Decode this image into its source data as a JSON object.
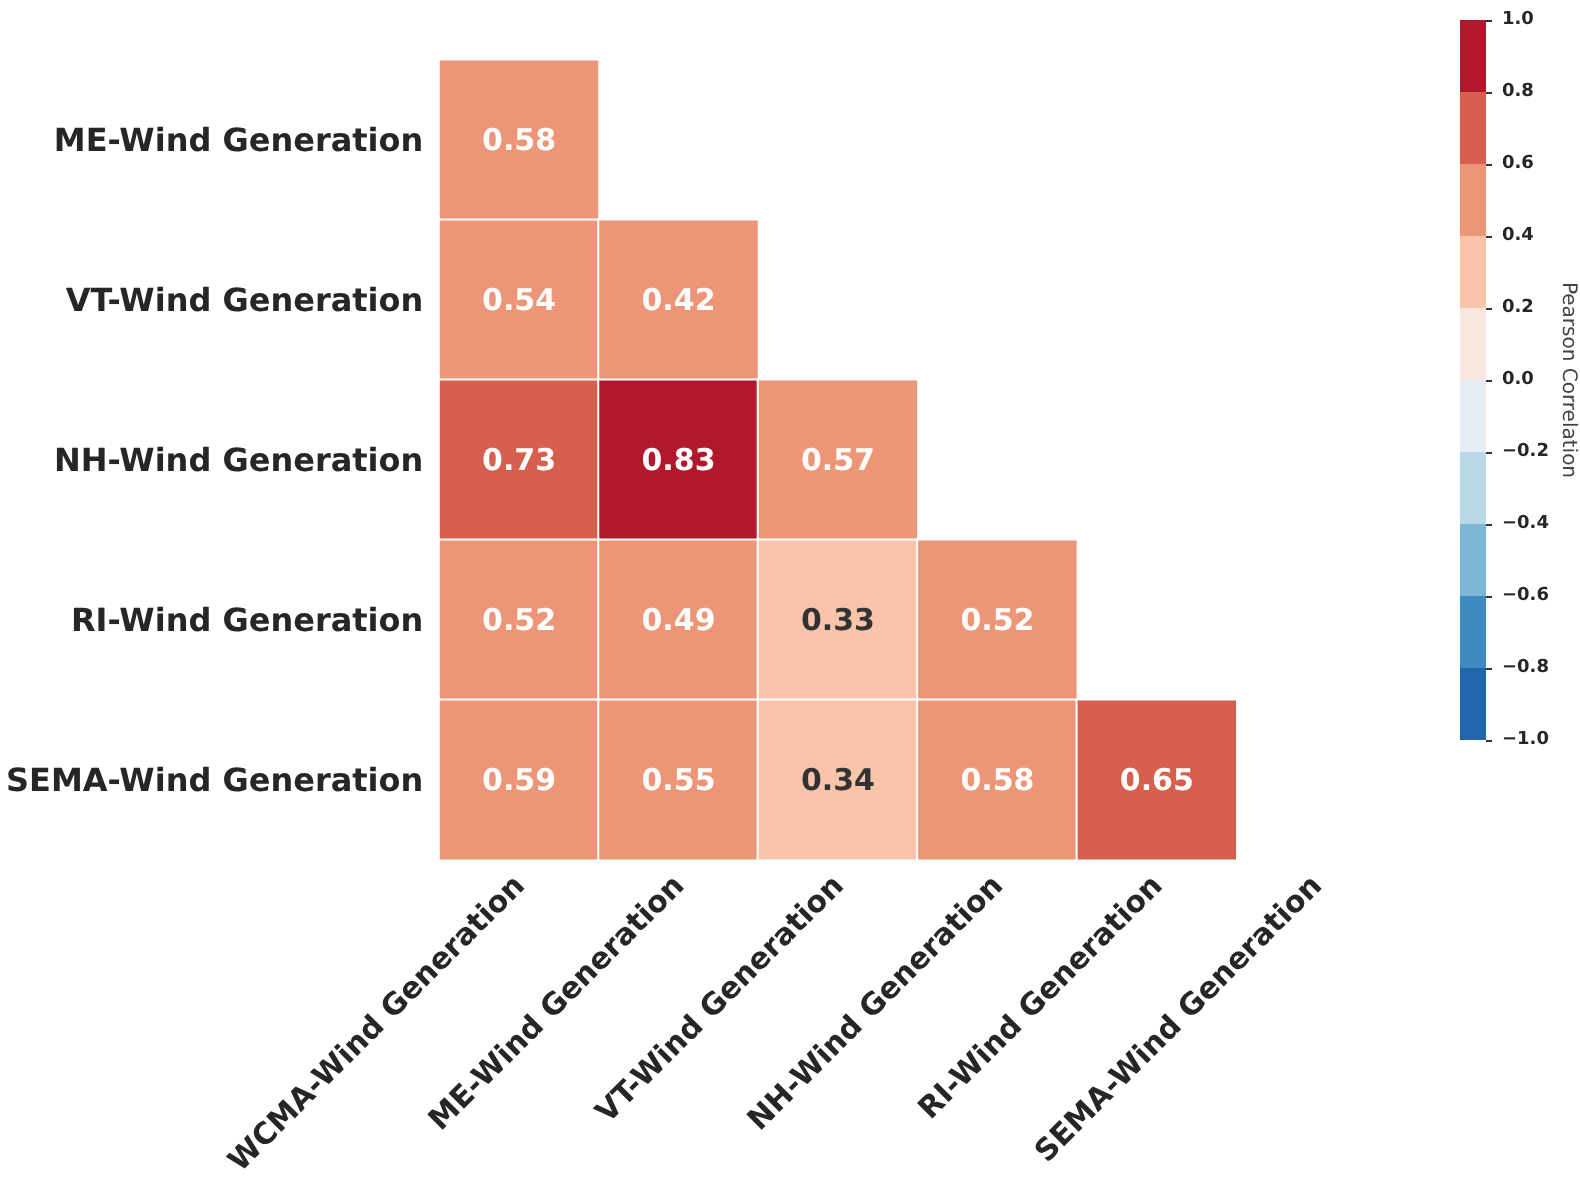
{
  "chart_data": {
    "type": "heatmap",
    "clabel": "Pearson Correlation",
    "data_labels": true,
    "categories": [
      "WCMA-Wind Generation",
      "ME-Wind Generation",
      "VT-Wind Generation",
      "NH-Wind Generation",
      "RI-Wind Generation",
      "SEMA-Wind Generation"
    ],
    "y_categories": [
      "ME-Wind Generation",
      "VT-Wind Generation",
      "NH-Wind Generation",
      "RI-Wind Generation",
      "SEMA-Wind Generation"
    ],
    "cells": [
      [
        0.58,
        null,
        null,
        null,
        null,
        null
      ],
      [
        0.54,
        0.42,
        null,
        null,
        null,
        null
      ],
      [
        0.73,
        0.83,
        0.57,
        null,
        null,
        null
      ],
      [
        0.52,
        0.49,
        0.33,
        0.52,
        null,
        null
      ],
      [
        0.59,
        0.55,
        0.34,
        0.58,
        0.65,
        null
      ]
    ],
    "clim": [
      -1.0,
      1.0
    ],
    "cticks": [
      {
        "value": -1,
        "label": "−1.0"
      },
      {
        "value": -0.8,
        "label": "−0.8"
      },
      {
        "value": -0.6,
        "label": "−0.6"
      },
      {
        "value": -0.4,
        "label": "−0.4"
      },
      {
        "value": -0.2,
        "label": "−0.2"
      },
      {
        "value": 0,
        "label": "0.0"
      },
      {
        "value": 0.2,
        "label": "0.2"
      },
      {
        "value": 0.4,
        "label": "0.4"
      },
      {
        "value": 0.6,
        "label": "0.6"
      },
      {
        "value": 0.8,
        "label": "0.8"
      },
      {
        "value": 1,
        "label": "1.0"
      }
    ]
  }
}
